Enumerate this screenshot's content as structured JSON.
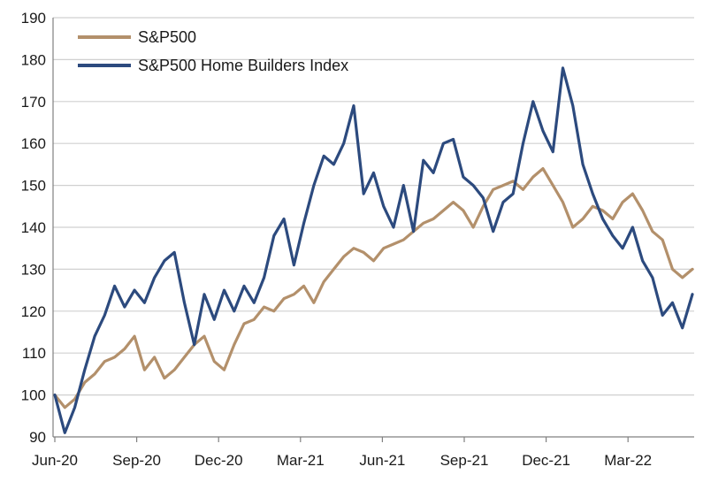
{
  "chart_data": {
    "type": "line",
    "title": "",
    "xlabel": "",
    "ylabel": "",
    "ylim": [
      90,
      190
    ],
    "yticks": [
      90,
      100,
      110,
      120,
      130,
      140,
      150,
      160,
      170,
      180,
      190
    ],
    "xticks": [
      "Jun-20",
      "Sep-20",
      "Dec-20",
      "Mar-21",
      "Jun-21",
      "Sep-21",
      "Dec-21",
      "Mar-22"
    ],
    "grid": true,
    "legend": "top-left",
    "series": [
      {
        "name": "S&P500",
        "color": "#b3906b",
        "values": [
          100,
          97,
          99,
          103,
          105,
          108,
          109,
          111,
          114,
          106,
          109,
          104,
          106,
          109,
          112,
          114,
          108,
          106,
          112,
          117,
          118,
          121,
          120,
          123,
          124,
          126,
          122,
          127,
          130,
          133,
          135,
          134,
          132,
          135,
          136,
          137,
          139,
          141,
          142,
          144,
          146,
          144,
          140,
          145,
          149,
          150,
          151,
          149,
          152,
          154,
          150,
          146,
          140,
          142,
          145,
          144,
          142,
          146,
          148,
          144,
          139,
          137,
          130,
          128,
          130
        ]
      },
      {
        "name": "S&P500 Home Builders Index",
        "color": "#2c4a7e",
        "values": [
          100,
          91,
          97,
          106,
          114,
          119,
          126,
          121,
          125,
          122,
          128,
          132,
          134,
          122,
          112,
          124,
          118,
          125,
          120,
          126,
          122,
          128,
          138,
          142,
          131,
          141,
          150,
          157,
          155,
          160,
          169,
          148,
          153,
          145,
          140,
          150,
          139,
          156,
          153,
          160,
          161,
          152,
          150,
          147,
          139,
          146,
          148,
          160,
          170,
          163,
          158,
          178,
          169,
          155,
          148,
          142,
          138,
          135,
          140,
          132,
          128,
          119,
          122,
          116,
          124
        ]
      }
    ]
  }
}
